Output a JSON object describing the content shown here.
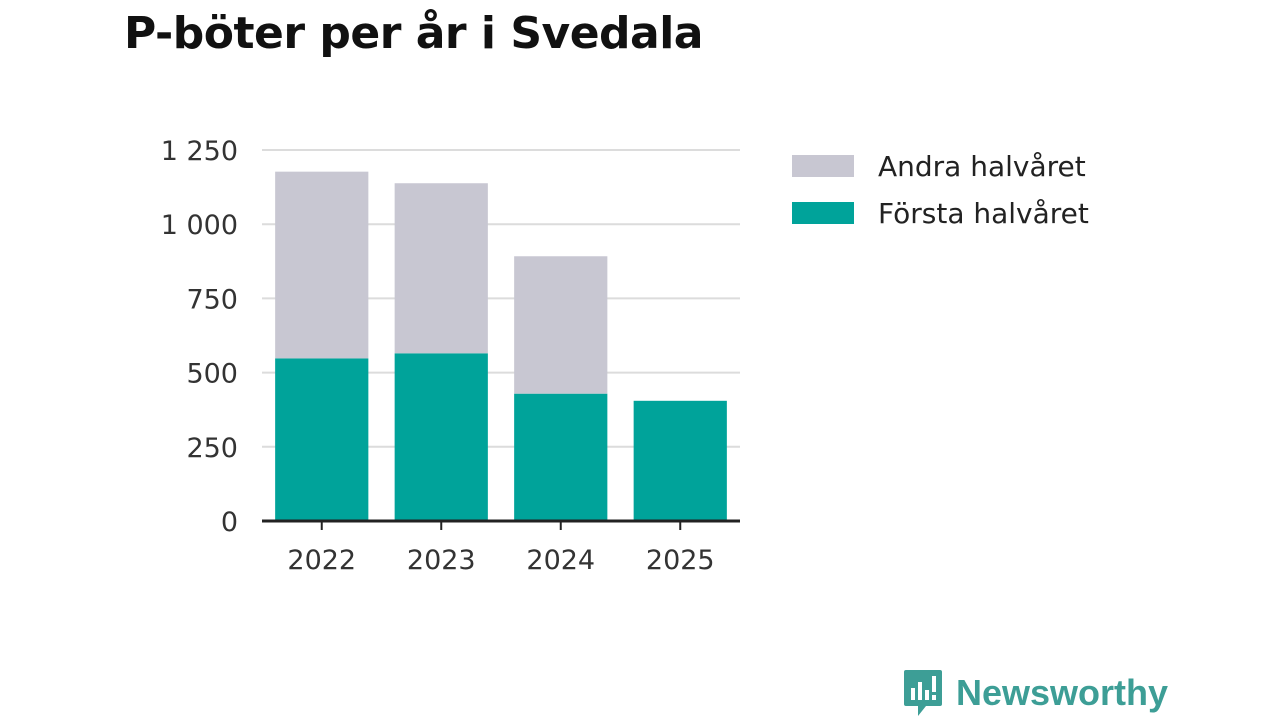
{
  "title": "P-böter per år i Svedala",
  "chart_data": {
    "type": "bar",
    "stacked": true,
    "title": "P-böter per år i Svedala",
    "categories": [
      "2022",
      "2023",
      "2024",
      "2025"
    ],
    "series": [
      {
        "name": "Första halvåret",
        "values": [
          548,
          565,
          429,
          405
        ],
        "color": "#00a39a"
      },
      {
        "name": "Andra halvåret",
        "values": [
          629,
          573,
          463,
          0
        ],
        "color": "#c8c7d2"
      }
    ],
    "legend_order": [
      "Andra halvåret",
      "Första halvåret"
    ],
    "yticks": [
      0,
      250,
      500,
      750,
      1000,
      1250
    ],
    "ytick_labels": [
      "0",
      "250",
      "500",
      "750",
      "1 000",
      "1 250"
    ],
    "ylim": [
      0,
      1250
    ],
    "xlabel": "",
    "ylabel": "",
    "grid": true,
    "legend_position": "right"
  },
  "brand": {
    "name": "Newsworthy",
    "color": "#3d9e96",
    "icon": "bar-chart-speech-bubble-icon"
  }
}
